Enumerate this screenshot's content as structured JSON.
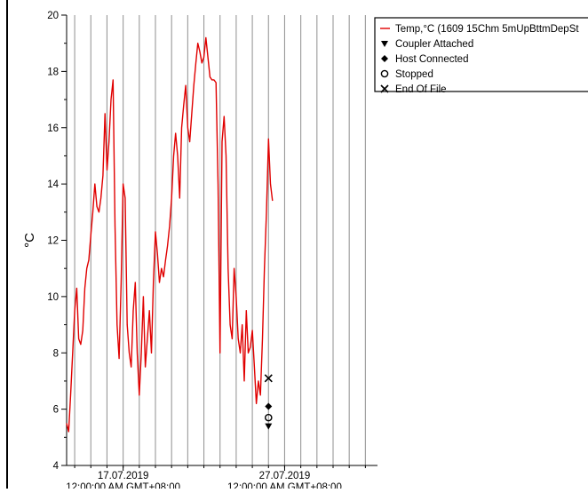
{
  "chart_data": {
    "type": "line",
    "title": "",
    "xlabel": "",
    "ylabel": "°C",
    "ylim": [
      4,
      20
    ],
    "y_ticks": [
      4,
      6,
      8,
      10,
      12,
      14,
      16,
      18,
      20
    ],
    "x_range": [
      "2019-07-13 12:00",
      "2019-08-01 18:00"
    ],
    "x_tick_labels": [
      {
        "date": "17.07.2019",
        "time": "12:00:00 AM GMT+08:00"
      },
      {
        "date": "27.07.2019",
        "time": "12:00:00 AM GMT+08:00"
      }
    ],
    "grid": "vertical lines at each day",
    "legend_position": "top-right",
    "colors": {
      "series": "#e00000",
      "grid": "#999999",
      "axis": "#000000",
      "markers": "#000000"
    },
    "series": [
      {
        "name": "Temp,°C  (1609 15Chm 5mUpBttmDepSt",
        "points": [
          [
            "2019-07-13 12:00",
            5.5
          ],
          [
            "2019-07-13 15:00",
            5.2
          ],
          [
            "2019-07-13 18:00",
            6.5
          ],
          [
            "2019-07-13 21:00",
            8.0
          ],
          [
            "2019-07-14 00:00",
            9.5
          ],
          [
            "2019-07-14 03:00",
            10.3
          ],
          [
            "2019-07-14 06:00",
            8.5
          ],
          [
            "2019-07-14 09:00",
            8.3
          ],
          [
            "2019-07-14 12:00",
            8.8
          ],
          [
            "2019-07-14 15:00",
            10.3
          ],
          [
            "2019-07-14 18:00",
            11.0
          ],
          [
            "2019-07-14 21:00",
            11.3
          ],
          [
            "2019-07-15 00:00",
            12.2
          ],
          [
            "2019-07-15 03:00",
            13.0
          ],
          [
            "2019-07-15 06:00",
            14.0
          ],
          [
            "2019-07-15 09:00",
            13.2
          ],
          [
            "2019-07-15 12:00",
            13.0
          ],
          [
            "2019-07-15 15:00",
            13.5
          ],
          [
            "2019-07-15 18:00",
            14.3
          ],
          [
            "2019-07-15 21:00",
            16.5
          ],
          [
            "2019-07-16 00:00",
            14.5
          ],
          [
            "2019-07-16 03:00",
            15.5
          ],
          [
            "2019-07-16 06:00",
            17.0
          ],
          [
            "2019-07-16 09:00",
            17.7
          ],
          [
            "2019-07-16 12:00",
            12.5
          ],
          [
            "2019-07-16 15:00",
            9.0
          ],
          [
            "2019-07-16 18:00",
            7.8
          ],
          [
            "2019-07-16 21:00",
            10.5
          ],
          [
            "2019-07-17 00:00",
            14.0
          ],
          [
            "2019-07-17 03:00",
            13.5
          ],
          [
            "2019-07-17 06:00",
            9.0
          ],
          [
            "2019-07-17 09:00",
            8.0
          ],
          [
            "2019-07-17 12:00",
            7.5
          ],
          [
            "2019-07-17 15:00",
            9.5
          ],
          [
            "2019-07-17 18:00",
            10.5
          ],
          [
            "2019-07-17 21:00",
            8.0
          ],
          [
            "2019-07-18 00:00",
            6.5
          ],
          [
            "2019-07-18 03:00",
            8.0
          ],
          [
            "2019-07-18 06:00",
            10.0
          ],
          [
            "2019-07-18 09:00",
            7.5
          ],
          [
            "2019-07-18 12:00",
            8.5
          ],
          [
            "2019-07-18 15:00",
            9.5
          ],
          [
            "2019-07-18 18:00",
            8.0
          ],
          [
            "2019-07-18 21:00",
            10.5
          ],
          [
            "2019-07-19 00:00",
            12.3
          ],
          [
            "2019-07-19 03:00",
            11.5
          ],
          [
            "2019-07-19 06:00",
            10.5
          ],
          [
            "2019-07-19 09:00",
            11.0
          ],
          [
            "2019-07-19 12:00",
            10.7
          ],
          [
            "2019-07-19 15:00",
            11.3
          ],
          [
            "2019-07-19 18:00",
            11.8
          ],
          [
            "2019-07-19 21:00",
            12.5
          ],
          [
            "2019-07-20 00:00",
            13.5
          ],
          [
            "2019-07-20 03:00",
            15.0
          ],
          [
            "2019-07-20 06:00",
            15.8
          ],
          [
            "2019-07-20 09:00",
            15.0
          ],
          [
            "2019-07-20 12:00",
            13.5
          ],
          [
            "2019-07-20 15:00",
            16.0
          ],
          [
            "2019-07-20 18:00",
            16.8
          ],
          [
            "2019-07-20 21:00",
            17.5
          ],
          [
            "2019-07-21 00:00",
            16.0
          ],
          [
            "2019-07-21 03:00",
            15.5
          ],
          [
            "2019-07-21 06:00",
            16.5
          ],
          [
            "2019-07-21 09:00",
            17.5
          ],
          [
            "2019-07-21 12:00",
            18.3
          ],
          [
            "2019-07-21 15:00",
            19.0
          ],
          [
            "2019-07-21 18:00",
            18.7
          ],
          [
            "2019-07-21 21:00",
            18.3
          ],
          [
            "2019-07-22 00:00",
            18.5
          ],
          [
            "2019-07-22 03:00",
            19.2
          ],
          [
            "2019-07-22 06:00",
            18.5
          ],
          [
            "2019-07-22 09:00",
            17.8
          ],
          [
            "2019-07-22 12:00",
            17.7
          ],
          [
            "2019-07-22 15:00",
            17.7
          ],
          [
            "2019-07-22 18:00",
            17.6
          ],
          [
            "2019-07-22 21:00",
            14.0
          ],
          [
            "2019-07-23 00:00",
            8.0
          ],
          [
            "2019-07-23 03:00",
            15.5
          ],
          [
            "2019-07-23 06:00",
            16.4
          ],
          [
            "2019-07-23 09:00",
            15.0
          ],
          [
            "2019-07-23 12:00",
            11.0
          ],
          [
            "2019-07-23 15:00",
            9.0
          ],
          [
            "2019-07-23 18:00",
            8.5
          ],
          [
            "2019-07-23 21:00",
            11.0
          ],
          [
            "2019-07-24 00:00",
            10.0
          ],
          [
            "2019-07-24 03:00",
            8.5
          ],
          [
            "2019-07-24 06:00",
            8.0
          ],
          [
            "2019-07-24 09:00",
            9.0
          ],
          [
            "2019-07-24 12:00",
            7.0
          ],
          [
            "2019-07-24 15:00",
            9.5
          ],
          [
            "2019-07-24 18:00",
            8.0
          ],
          [
            "2019-07-24 21:00",
            8.2
          ],
          [
            "2019-07-25 00:00",
            8.8
          ],
          [
            "2019-07-25 03:00",
            7.5
          ],
          [
            "2019-07-25 06:00",
            6.2
          ],
          [
            "2019-07-25 09:00",
            7.0
          ],
          [
            "2019-07-25 12:00",
            6.5
          ],
          [
            "2019-07-25 15:00",
            8.5
          ],
          [
            "2019-07-25 18:00",
            11.0
          ],
          [
            "2019-07-25 21:00",
            13.0
          ],
          [
            "2019-07-26 00:00",
            15.6
          ],
          [
            "2019-07-26 03:00",
            14.0
          ],
          [
            "2019-07-26 06:00",
            13.4
          ]
        ]
      }
    ],
    "event_markers": [
      {
        "name": "Coupler Attached",
        "symbol": "▼",
        "x": "2019-07-26 00:00",
        "y": 5.4
      },
      {
        "name": "Host Connected",
        "symbol": "◆",
        "x": "2019-07-26 00:00",
        "y": 6.1
      },
      {
        "name": "Stopped",
        "symbol": "○",
        "x": "2019-07-26 00:00",
        "y": 5.7
      },
      {
        "name": "End Of File",
        "symbol": "×",
        "x": "2019-07-26 00:00",
        "y": 7.1
      }
    ],
    "legend": [
      {
        "label": "Temp,°C  (1609 15Chm 5mUpBttmDepSt",
        "symbol": "line"
      },
      {
        "label": "Coupler Attached",
        "symbol": "▼"
      },
      {
        "label": "Host Connected",
        "symbol": "◆"
      },
      {
        "label": "Stopped",
        "symbol": "○"
      },
      {
        "label": "End Of File",
        "symbol": "×"
      }
    ]
  }
}
